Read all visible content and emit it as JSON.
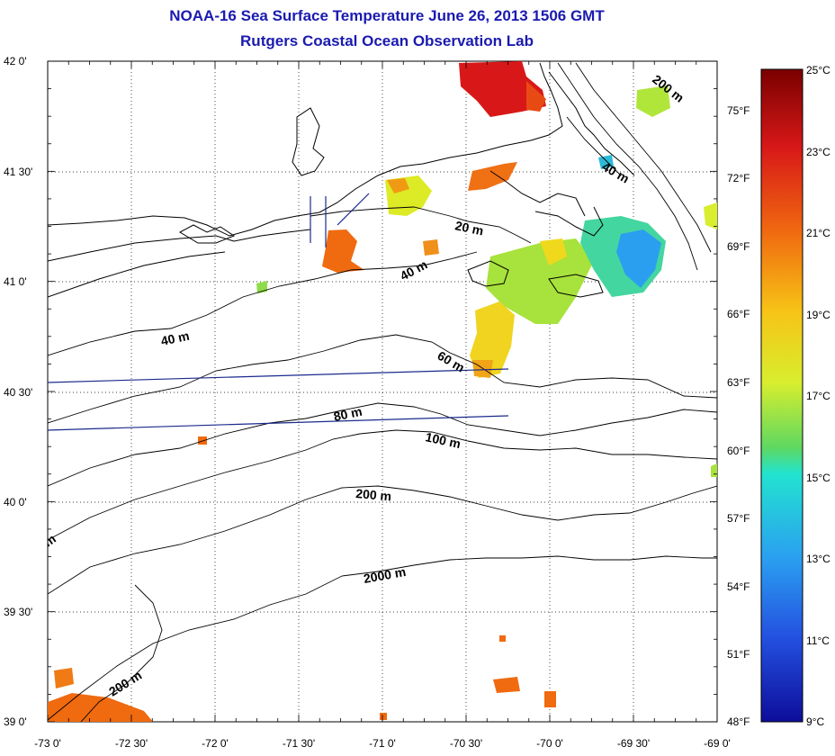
{
  "title": "NOAA-16 Sea Surface Temperature June 26, 2013 1506 GMT",
  "subtitle": "Rutgers Coastal Ocean Observation Lab",
  "map": {
    "lon_range": [
      -73.0,
      -69.0
    ],
    "lat_range": [
      39.0,
      42.0
    ],
    "x_ticks": [
      "-73 0'",
      "-72 30'",
      "-72 0'",
      "-71 30'",
      "-71 0'",
      "-70 30'",
      "-70 0'",
      "-69 30'",
      "-69 0'"
    ],
    "y_ticks": [
      "39 0'",
      "39 30'",
      "40 0'",
      "40 30'",
      "41 0'",
      "41 30'",
      "42 0'"
    ],
    "grid": "dotted",
    "contour_labels": [
      "20 m",
      "40 m",
      "40 m",
      "40 m",
      "60 m",
      "80 m",
      "100 m",
      "200 m",
      "200 m",
      "200 m",
      "2000 m",
      "m"
    ]
  },
  "colorbar": {
    "celsius_labels": [
      "25°C",
      "23°C",
      "21°C",
      "19°C",
      "17°C",
      "15°C",
      "13°C",
      "11°C",
      "9°C"
    ],
    "fahrenheit_labels": [
      "75°F",
      "72°F",
      "69°F",
      "66°F",
      "63°F",
      "60°F",
      "57°F",
      "54°F",
      "51°F",
      "48°F"
    ],
    "colors": [
      "#7a0000",
      "#d81818",
      "#f06a10",
      "#f7c316",
      "#d8ee2e",
      "#5ed861",
      "#22e3d0",
      "#2a9ff0",
      "#2451e0",
      "#0d0d9a"
    ]
  }
}
